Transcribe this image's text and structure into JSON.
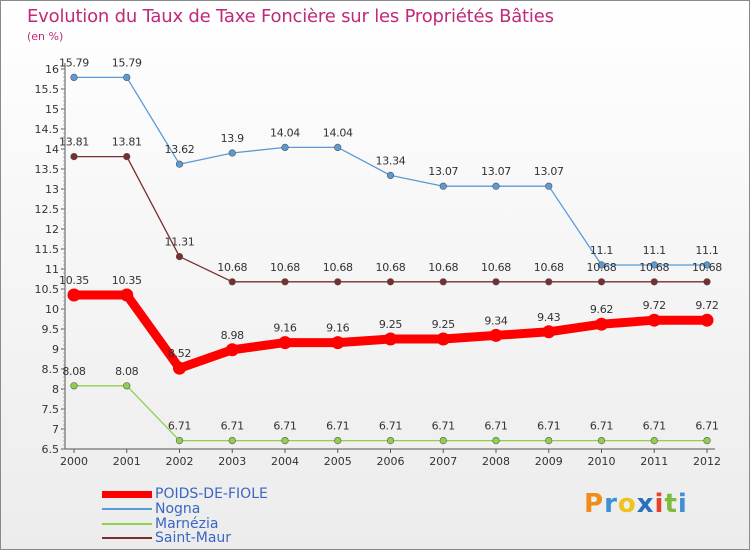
{
  "chart_data": {
    "type": "line",
    "title": "Evolution du Taux de Taxe Foncière sur les Propriétés Bâties",
    "unit": "(en %)",
    "xlabel": "",
    "ylabel": "(en %)",
    "x": [
      "2000",
      "2001",
      "2002",
      "2003",
      "2004",
      "2005",
      "2006",
      "2007",
      "2008",
      "2009",
      "2010",
      "2011",
      "2012"
    ],
    "ylim": [
      6.5,
      16
    ],
    "yticks": [
      "6.5",
      "7",
      "7.5",
      "8",
      "8.5",
      "9",
      "9.5",
      "10",
      "10.5",
      "11",
      "11.5",
      "12",
      "12.5",
      "13",
      "13.5",
      "14",
      "14.5",
      "15",
      "15.5",
      "16"
    ],
    "legend_position": "bottom-left",
    "series": [
      {
        "name": "POIDS-DE-FIOLE",
        "color": "#ff0000",
        "emphasis": true,
        "values": [
          10.35,
          10.35,
          8.52,
          8.98,
          9.16,
          9.16,
          9.25,
          9.25,
          9.34,
          9.43,
          9.62,
          9.72,
          9.72
        ],
        "labels": [
          "10.35",
          "10.35",
          "8.52",
          "8.98",
          "9.16",
          "9.16",
          "9.25",
          "9.25",
          "9.34",
          "9.43",
          "9.62",
          "9.72",
          "9.72"
        ]
      },
      {
        "name": "Nogna",
        "color": "#5b9bd5",
        "values": [
          15.79,
          15.79,
          13.62,
          13.9,
          14.04,
          14.04,
          13.34,
          13.07,
          13.07,
          13.07,
          11.1,
          11.1,
          11.1
        ],
        "labels": [
          "15.79",
          "15.79",
          "13.62",
          "13.9",
          "14.04",
          "14.04",
          "13.34",
          "13.07",
          "13.07",
          "13.07",
          "11.1",
          "11.1",
          "11.1"
        ]
      },
      {
        "name": "Marnézia",
        "color": "#8fd14f",
        "values": [
          8.08,
          8.08,
          6.71,
          6.71,
          6.71,
          6.71,
          6.71,
          6.71,
          6.71,
          6.71,
          6.71,
          6.71,
          6.71
        ],
        "labels": [
          "8.08",
          "8.08",
          "6.71",
          "6.71",
          "6.71",
          "6.71",
          "6.71",
          "6.71",
          "6.71",
          "6.71",
          "6.71",
          "6.71",
          "6.71"
        ]
      },
      {
        "name": "Saint-Maur",
        "color": "#7b2d2d",
        "values": [
          13.81,
          13.81,
          11.31,
          10.68,
          10.68,
          10.68,
          10.68,
          10.68,
          10.68,
          10.68,
          10.68,
          10.68,
          10.68
        ],
        "labels": [
          "13.81",
          "13.81",
          "11.31",
          "10.68",
          "10.68",
          "10.68",
          "10.68",
          "10.68",
          "10.68",
          "10.68",
          "10.68",
          "10.68",
          "10.68"
        ]
      }
    ]
  },
  "logo": {
    "letters": [
      "P",
      "r",
      "o",
      "x",
      "i",
      "t",
      "i"
    ],
    "colors": [
      "#f08c1c",
      "#3f8fd6",
      "#f0c21c",
      "#2c6fbf",
      "#e8402b",
      "#7dbb3b",
      "#3f8fd6"
    ]
  }
}
